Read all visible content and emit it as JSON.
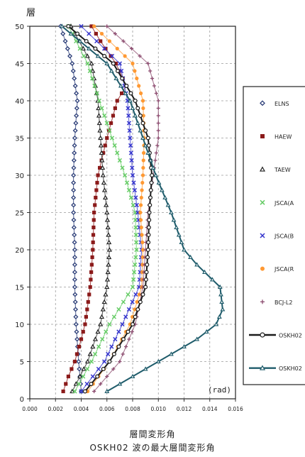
{
  "chart_data": {
    "type": "line",
    "ylabel": "層",
    "xlabel": "層間変形角",
    "title": "OSKH02 波の最大層間変形角",
    "unit_label": "(rad)",
    "xlim": [
      0.0,
      0.016
    ],
    "ylim": [
      0,
      50
    ],
    "x_ticks": [
      "0.000",
      "0.002",
      "0.004",
      "0.006",
      "0.008",
      "0.010",
      "0.012",
      "0.014",
      "0.016"
    ],
    "y_ticks": [
      "0",
      "5",
      "10",
      "15",
      "20",
      "25",
      "30",
      "35",
      "40",
      "45",
      "50"
    ],
    "grid": true,
    "legend_position": "right",
    "series": [
      {
        "name": "ELNS",
        "color": "#2c3e78",
        "marker": "diamond",
        "line": false,
        "y_points": [
          [
            1,
            0.004
          ],
          [
            5,
            0.0038
          ],
          [
            10,
            0.0036
          ],
          [
            15,
            0.0035
          ],
          [
            20,
            0.0035
          ],
          [
            25,
            0.0034
          ],
          [
            30,
            0.0034
          ],
          [
            35,
            0.0035
          ],
          [
            40,
            0.0037
          ],
          [
            45,
            0.0033
          ],
          [
            50,
            0.0024
          ]
        ]
      },
      {
        "name": "HAEW",
        "color": "#8b1a1a",
        "marker": "square",
        "line": false,
        "y_points": [
          [
            1,
            0.0026
          ],
          [
            3,
            0.003
          ],
          [
            5,
            0.0035
          ],
          [
            8,
            0.004
          ],
          [
            10,
            0.0043
          ],
          [
            15,
            0.0047
          ],
          [
            20,
            0.0049
          ],
          [
            25,
            0.005
          ],
          [
            30,
            0.0053
          ],
          [
            35,
            0.006
          ],
          [
            40,
            0.0068
          ],
          [
            42,
            0.0075
          ],
          [
            45,
            0.0067
          ],
          [
            48,
            0.0055
          ],
          [
            50,
            0.0048
          ]
        ]
      },
      {
        "name": "TAEW",
        "color": "#222222",
        "marker": "triangle",
        "line": false,
        "y_points": [
          [
            1,
            0.0033
          ],
          [
            5,
            0.0045
          ],
          [
            10,
            0.0055
          ],
          [
            15,
            0.006
          ],
          [
            20,
            0.0062
          ],
          [
            25,
            0.006
          ],
          [
            30,
            0.0057
          ],
          [
            35,
            0.0055
          ],
          [
            40,
            0.0053
          ],
          [
            45,
            0.0048
          ],
          [
            50,
            0.0032
          ]
        ]
      },
      {
        "name": "JSCA(A",
        "color": "#66cc66",
        "marker": "x",
        "line": false,
        "y_points": [
          [
            1,
            0.0035
          ],
          [
            5,
            0.0048
          ],
          [
            10,
            0.0062
          ],
          [
            15,
            0.008
          ],
          [
            20,
            0.0083
          ],
          [
            25,
            0.0082
          ],
          [
            30,
            0.0074
          ],
          [
            35,
            0.0064
          ],
          [
            40,
            0.0054
          ],
          [
            45,
            0.0045
          ],
          [
            50,
            0.003
          ]
        ]
      },
      {
        "name": "JSCA(B",
        "color": "#3333cc",
        "marker": "x",
        "line": false,
        "y_points": [
          [
            1,
            0.004
          ],
          [
            5,
            0.0058
          ],
          [
            10,
            0.0072
          ],
          [
            15,
            0.0085
          ],
          [
            20,
            0.0087
          ],
          [
            25,
            0.0084
          ],
          [
            30,
            0.008
          ],
          [
            35,
            0.0078
          ],
          [
            40,
            0.0076
          ],
          [
            45,
            0.007
          ],
          [
            50,
            0.004
          ]
        ]
      },
      {
        "name": "JSCA(R",
        "color": "#ff9933",
        "marker": "dot",
        "line": false,
        "y_points": [
          [
            1,
            0.0045
          ],
          [
            5,
            0.0062
          ],
          [
            10,
            0.0078
          ],
          [
            15,
            0.0087
          ],
          [
            20,
            0.0088
          ],
          [
            25,
            0.0086
          ],
          [
            30,
            0.0088
          ],
          [
            35,
            0.0089
          ],
          [
            40,
            0.0088
          ],
          [
            45,
            0.008
          ],
          [
            50,
            0.005
          ]
        ]
      },
      {
        "name": "BCJ-L2",
        "color": "#8b4a6e",
        "marker": "plus",
        "line": false,
        "y_points": [
          [
            1,
            0.005
          ],
          [
            5,
            0.007
          ],
          [
            10,
            0.0082
          ],
          [
            15,
            0.0088
          ],
          [
            20,
            0.009
          ],
          [
            25,
            0.0092
          ],
          [
            30,
            0.0096
          ],
          [
            35,
            0.01
          ],
          [
            40,
            0.01
          ],
          [
            45,
            0.0092
          ],
          [
            50,
            0.006
          ]
        ]
      },
      {
        "name": "OSKH02",
        "color": "#1a1a1a",
        "marker": "circle",
        "line": true,
        "y_points": [
          [
            1,
            0.0043
          ],
          [
            5,
            0.0062
          ],
          [
            10,
            0.008
          ],
          [
            15,
            0.009
          ],
          [
            20,
            0.0092
          ],
          [
            25,
            0.0093
          ],
          [
            30,
            0.0095
          ],
          [
            35,
            0.0092
          ],
          [
            40,
            0.0082
          ],
          [
            45,
            0.0065
          ],
          [
            50,
            0.003
          ]
        ]
      },
      {
        "name": "OSKH02",
        "color": "#1f5c6b",
        "marker": "triangle",
        "line": true,
        "y_points": [
          [
            1,
            0.006
          ],
          [
            3,
            0.008
          ],
          [
            5,
            0.01
          ],
          [
            8,
            0.013
          ],
          [
            10,
            0.0145
          ],
          [
            12,
            0.015
          ],
          [
            15,
            0.0148
          ],
          [
            18,
            0.013
          ],
          [
            20,
            0.012
          ],
          [
            25,
            0.011
          ],
          [
            30,
            0.0098
          ],
          [
            35,
            0.0088
          ],
          [
            40,
            0.0078
          ],
          [
            45,
            0.006
          ],
          [
            50,
            0.0025
          ]
        ]
      }
    ]
  }
}
